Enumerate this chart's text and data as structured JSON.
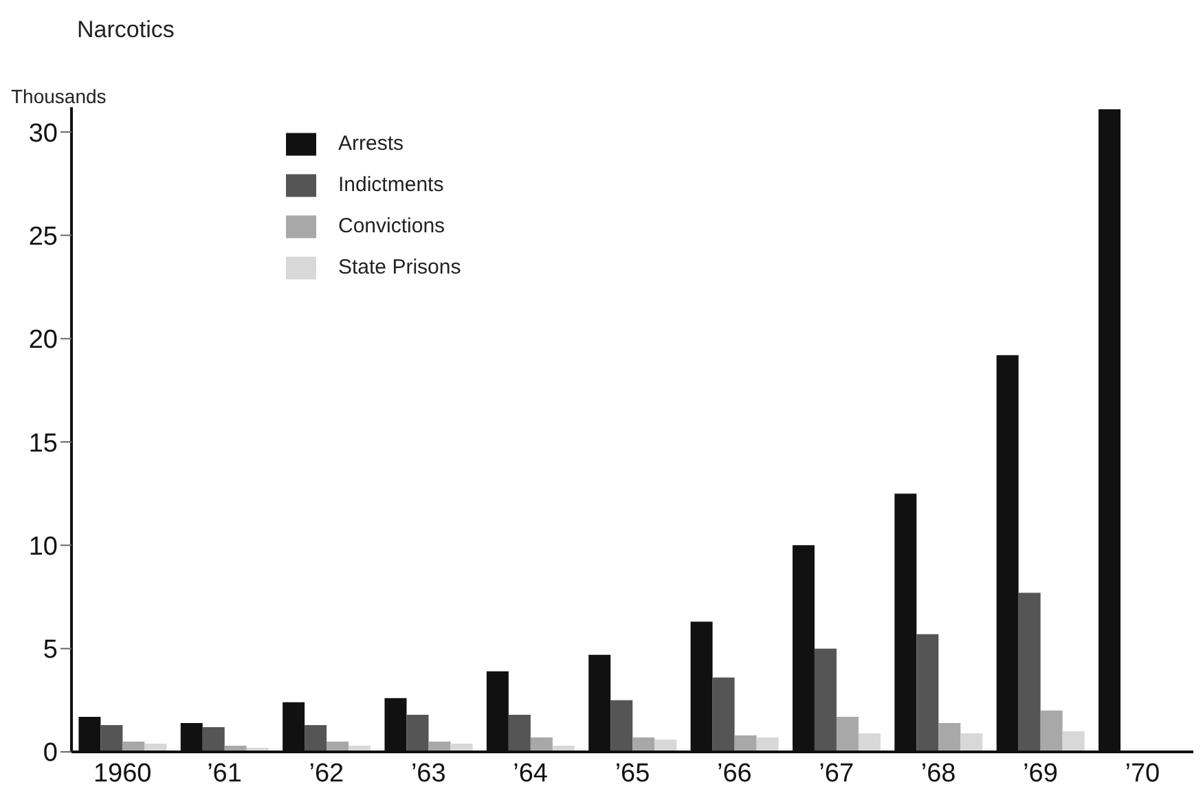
{
  "chart_data": {
    "type": "bar",
    "title": "Narcotics",
    "ylabel": "Thousands",
    "categories": [
      "1960",
      "’61",
      "’62",
      "’63",
      "’64",
      "’65",
      "’66",
      "’67",
      "’68",
      "’69",
      "’70"
    ],
    "series": [
      {
        "name": "Arrests",
        "color": "#111111",
        "values": [
          1.7,
          1.4,
          2.4,
          2.6,
          3.9,
          4.7,
          6.3,
          10.0,
          12.5,
          19.2,
          31.1
        ]
      },
      {
        "name": "Indictments",
        "color": "#555555",
        "values": [
          1.3,
          1.2,
          1.3,
          1.8,
          1.8,
          2.5,
          3.6,
          5.0,
          5.7,
          7.7,
          null
        ]
      },
      {
        "name": "Convictions",
        "color": "#a8a8a8",
        "values": [
          0.5,
          0.3,
          0.5,
          0.5,
          0.7,
          0.7,
          0.8,
          1.7,
          1.4,
          2.0,
          null
        ]
      },
      {
        "name": "State Prisons",
        "color": "#d8d8d8",
        "values": [
          0.4,
          0.2,
          0.3,
          0.4,
          0.3,
          0.6,
          0.7,
          0.9,
          0.9,
          1.0,
          null
        ]
      }
    ],
    "ylim": [
      0,
      31.2
    ],
    "yticks": [
      0,
      5,
      10,
      15,
      20,
      25,
      30
    ],
    "grid": false,
    "legend": "top left"
  }
}
